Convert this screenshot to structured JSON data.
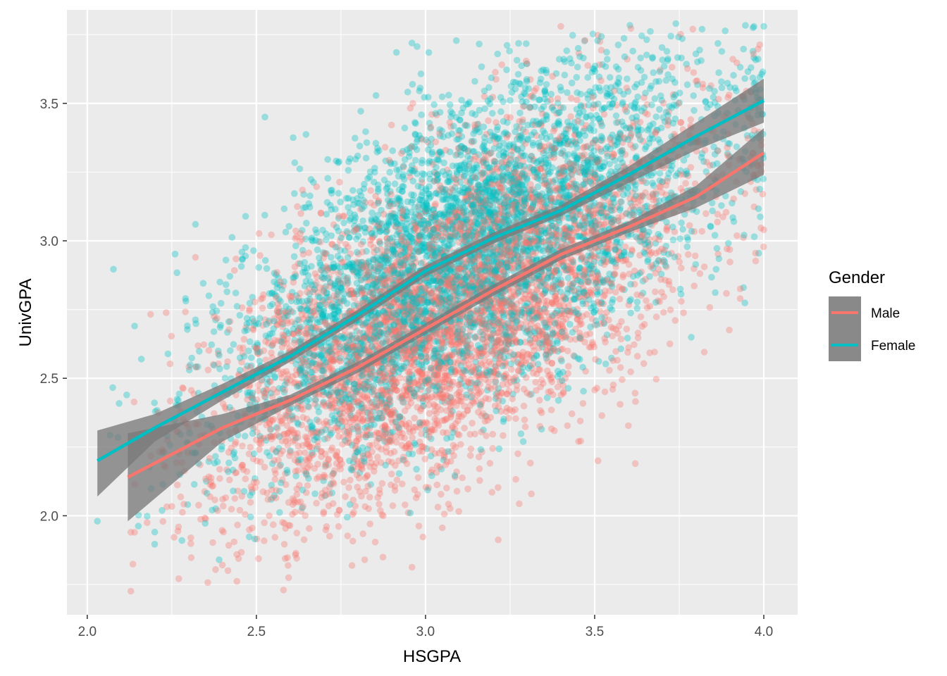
{
  "chart_data": {
    "type": "scatter",
    "title": "",
    "xlabel": "HSGPA",
    "ylabel": "UnivGPA",
    "xlim": [
      1.94,
      4.1
    ],
    "ylim": [
      1.64,
      3.84
    ],
    "x_ticks": [
      2.0,
      2.5,
      3.0,
      3.5,
      4.0
    ],
    "x_tick_labels": [
      "2.0",
      "2.5",
      "3.0",
      "3.5",
      "4.0"
    ],
    "y_ticks": [
      2.0,
      2.5,
      3.0,
      3.5
    ],
    "y_tick_labels": [
      "2.0",
      "2.5",
      "3.0",
      "3.5"
    ],
    "grid": true,
    "legend": {
      "title": "Gender",
      "position": "right",
      "entries": [
        "Male",
        "Female"
      ]
    },
    "series": [
      {
        "name": "Male",
        "color": "#F8766D",
        "point_alpha": 0.35,
        "approx_point_count": 4500,
        "point_spread": {
          "x_mean": 3.08,
          "x_sd": 0.35,
          "y_sd": 0.27,
          "x_min": 2.12,
          "x_max": 4.0,
          "y_min": 1.72,
          "y_max": 3.78
        },
        "sample_points": [
          {
            "x": 2.58,
            "y": 1.73
          },
          {
            "x": 3.4,
            "y": 3.78
          },
          {
            "x": 3.79,
            "y": 3.77
          },
          {
            "x": 2.14,
            "y": 1.94
          },
          {
            "x": 2.32,
            "y": 2.94
          },
          {
            "x": 3.62,
            "y": 2.19
          },
          {
            "x": 3.51,
            "y": 2.2
          },
          {
            "x": 4.0,
            "y": 3.04
          },
          {
            "x": 3.93,
            "y": 2.79
          },
          {
            "x": 2.82,
            "y": 1.84
          }
        ],
        "smooth": {
          "x": [
            2.12,
            2.4,
            2.6,
            2.8,
            3.0,
            3.2,
            3.4,
            3.6,
            3.8,
            4.0
          ],
          "y": [
            2.14,
            2.32,
            2.42,
            2.54,
            2.68,
            2.82,
            2.95,
            3.05,
            3.16,
            3.32
          ],
          "lower": [
            1.98,
            2.27,
            2.4,
            2.52,
            2.66,
            2.8,
            2.93,
            3.03,
            3.12,
            3.24
          ],
          "upper": [
            2.3,
            2.37,
            2.44,
            2.56,
            2.7,
            2.84,
            2.97,
            3.07,
            3.2,
            3.41
          ]
        }
      },
      {
        "name": "Female",
        "color": "#00BFC4",
        "point_alpha": 0.35,
        "approx_point_count": 4500,
        "point_spread": {
          "x_mean": 3.12,
          "x_sd": 0.35,
          "y_sd": 0.27,
          "x_min": 2.03,
          "x_max": 4.0,
          "y_min": 1.84,
          "y_max": 3.79
        },
        "sample_points": [
          {
            "x": 2.03,
            "y": 1.98
          },
          {
            "x": 2.14,
            "y": 2.69
          },
          {
            "x": 2.16,
            "y": 2.57
          },
          {
            "x": 2.32,
            "y": 3.06
          },
          {
            "x": 3.74,
            "y": 3.79
          },
          {
            "x": 4.0,
            "y": 3.78
          },
          {
            "x": 2.39,
            "y": 1.84
          },
          {
            "x": 2.28,
            "y": 1.91
          },
          {
            "x": 3.94,
            "y": 2.83
          },
          {
            "x": 2.41,
            "y": 2.93
          }
        ],
        "smooth": {
          "x": [
            2.03,
            2.2,
            2.4,
            2.6,
            2.8,
            3.0,
            3.2,
            3.4,
            3.6,
            3.8,
            4.0
          ],
          "y": [
            2.2,
            2.32,
            2.45,
            2.58,
            2.73,
            2.89,
            3.01,
            3.11,
            3.24,
            3.38,
            3.51
          ],
          "lower": [
            2.07,
            2.27,
            2.42,
            2.56,
            2.71,
            2.87,
            2.99,
            3.09,
            3.21,
            3.33,
            3.43
          ],
          "upper": [
            2.31,
            2.37,
            2.48,
            2.6,
            2.75,
            2.91,
            3.03,
            3.13,
            3.27,
            3.43,
            3.59
          ]
        }
      }
    ]
  }
}
